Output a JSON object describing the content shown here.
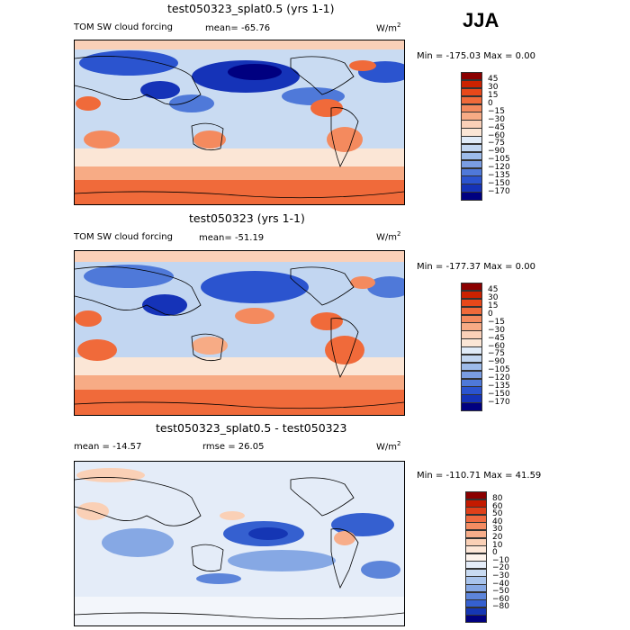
{
  "season": "JJA",
  "colors": {
    "abs": [
      "#8b0000",
      "#cc2200",
      "#e8481a",
      "#f06a3a",
      "#f48a5e",
      "#f7ab85",
      "#fad0b8",
      "#fbe6d6",
      "#e0ebf8",
      "#c2d6f1",
      "#9dbbea",
      "#7a9de2",
      "#4f79d9",
      "#2b54cf",
      "#1533b8",
      "#000080"
    ],
    "diff": [
      "#8b0000",
      "#c41a00",
      "#e0401a",
      "#ef6a40",
      "#f48c62",
      "#f7ad8a",
      "#fad0b6",
      "#fde7d8",
      "#fdf3ec",
      "#e4ecf8",
      "#c9dbf2",
      "#a9c4ec",
      "#86a8e4",
      "#5d85da",
      "#3560d0",
      "#1536b4",
      "#000080"
    ]
  },
  "panels": [
    {
      "id": "panel1",
      "title": "test050323_splat0.5 (yrs 1-1)",
      "field": "TOM SW cloud forcing",
      "stat1_label": "mean=",
      "stat1_value": "-65.76",
      "units_main": "W/m",
      "units_exp": "2",
      "minmax_text": "Min = -175.03 Max =    0.00",
      "legend_labels": [
        "45",
        "30",
        "15",
        "0",
        "−15",
        "−30",
        "−45",
        "−60",
        "−75",
        "−90",
        "−105",
        "−120",
        "−135",
        "−150",
        "−170"
      ]
    },
    {
      "id": "panel2",
      "title": "test050323 (yrs 1-1)",
      "field": "TOM SW cloud forcing",
      "stat1_label": "mean=",
      "stat1_value": "-51.19",
      "units_main": "W/m",
      "units_exp": "2",
      "minmax_text": "Min = -177.37 Max =    0.00",
      "legend_labels": [
        "45",
        "30",
        "15",
        "0",
        "−15",
        "−30",
        "−45",
        "−60",
        "−75",
        "−90",
        "−105",
        "−120",
        "−135",
        "−150",
        "−170"
      ]
    },
    {
      "id": "panel3",
      "title": "test050323_splat0.5 - test050323",
      "stat1_label": "mean =",
      "stat1_value": "-14.57",
      "stat2_label": "rmse =",
      "stat2_value": "26.05",
      "units_main": "W/m",
      "units_exp": "2",
      "minmax_text": "Min = -110.71 Max =  41.59",
      "legend_labels": [
        "80",
        "60",
        "50",
        "40",
        "30",
        "20",
        "10",
        "0",
        "−10",
        "−20",
        "−30",
        "−40",
        "−50",
        "−60",
        "−80"
      ]
    }
  ],
  "chart_data": [
    {
      "type": "heatmap",
      "title": "test050323_splat0.5 (yrs 1-1)",
      "variable": "TOM SW cloud forcing",
      "units": "W/m^2",
      "season": "JJA",
      "mean": -65.76,
      "min": -175.03,
      "max": 0.0,
      "contour_levels": [
        45,
        30,
        15,
        0,
        -15,
        -30,
        -45,
        -60,
        -75,
        -90,
        -105,
        -120,
        -135,
        -150,
        -170
      ]
    },
    {
      "type": "heatmap",
      "title": "test050323 (yrs 1-1)",
      "variable": "TOM SW cloud forcing",
      "units": "W/m^2",
      "season": "JJA",
      "mean": -51.19,
      "min": -177.37,
      "max": 0.0,
      "contour_levels": [
        45,
        30,
        15,
        0,
        -15,
        -30,
        -45,
        -60,
        -75,
        -90,
        -105,
        -120,
        -135,
        -150,
        -170
      ]
    },
    {
      "type": "heatmap",
      "title": "test050323_splat0.5 - test050323",
      "units": "W/m^2",
      "season": "JJA",
      "mean": -14.57,
      "rmse": 26.05,
      "min": -110.71,
      "max": 41.59,
      "contour_levels": [
        80,
        60,
        50,
        40,
        30,
        20,
        10,
        0,
        -10,
        -20,
        -30,
        -40,
        -50,
        -60,
        -80
      ]
    }
  ]
}
